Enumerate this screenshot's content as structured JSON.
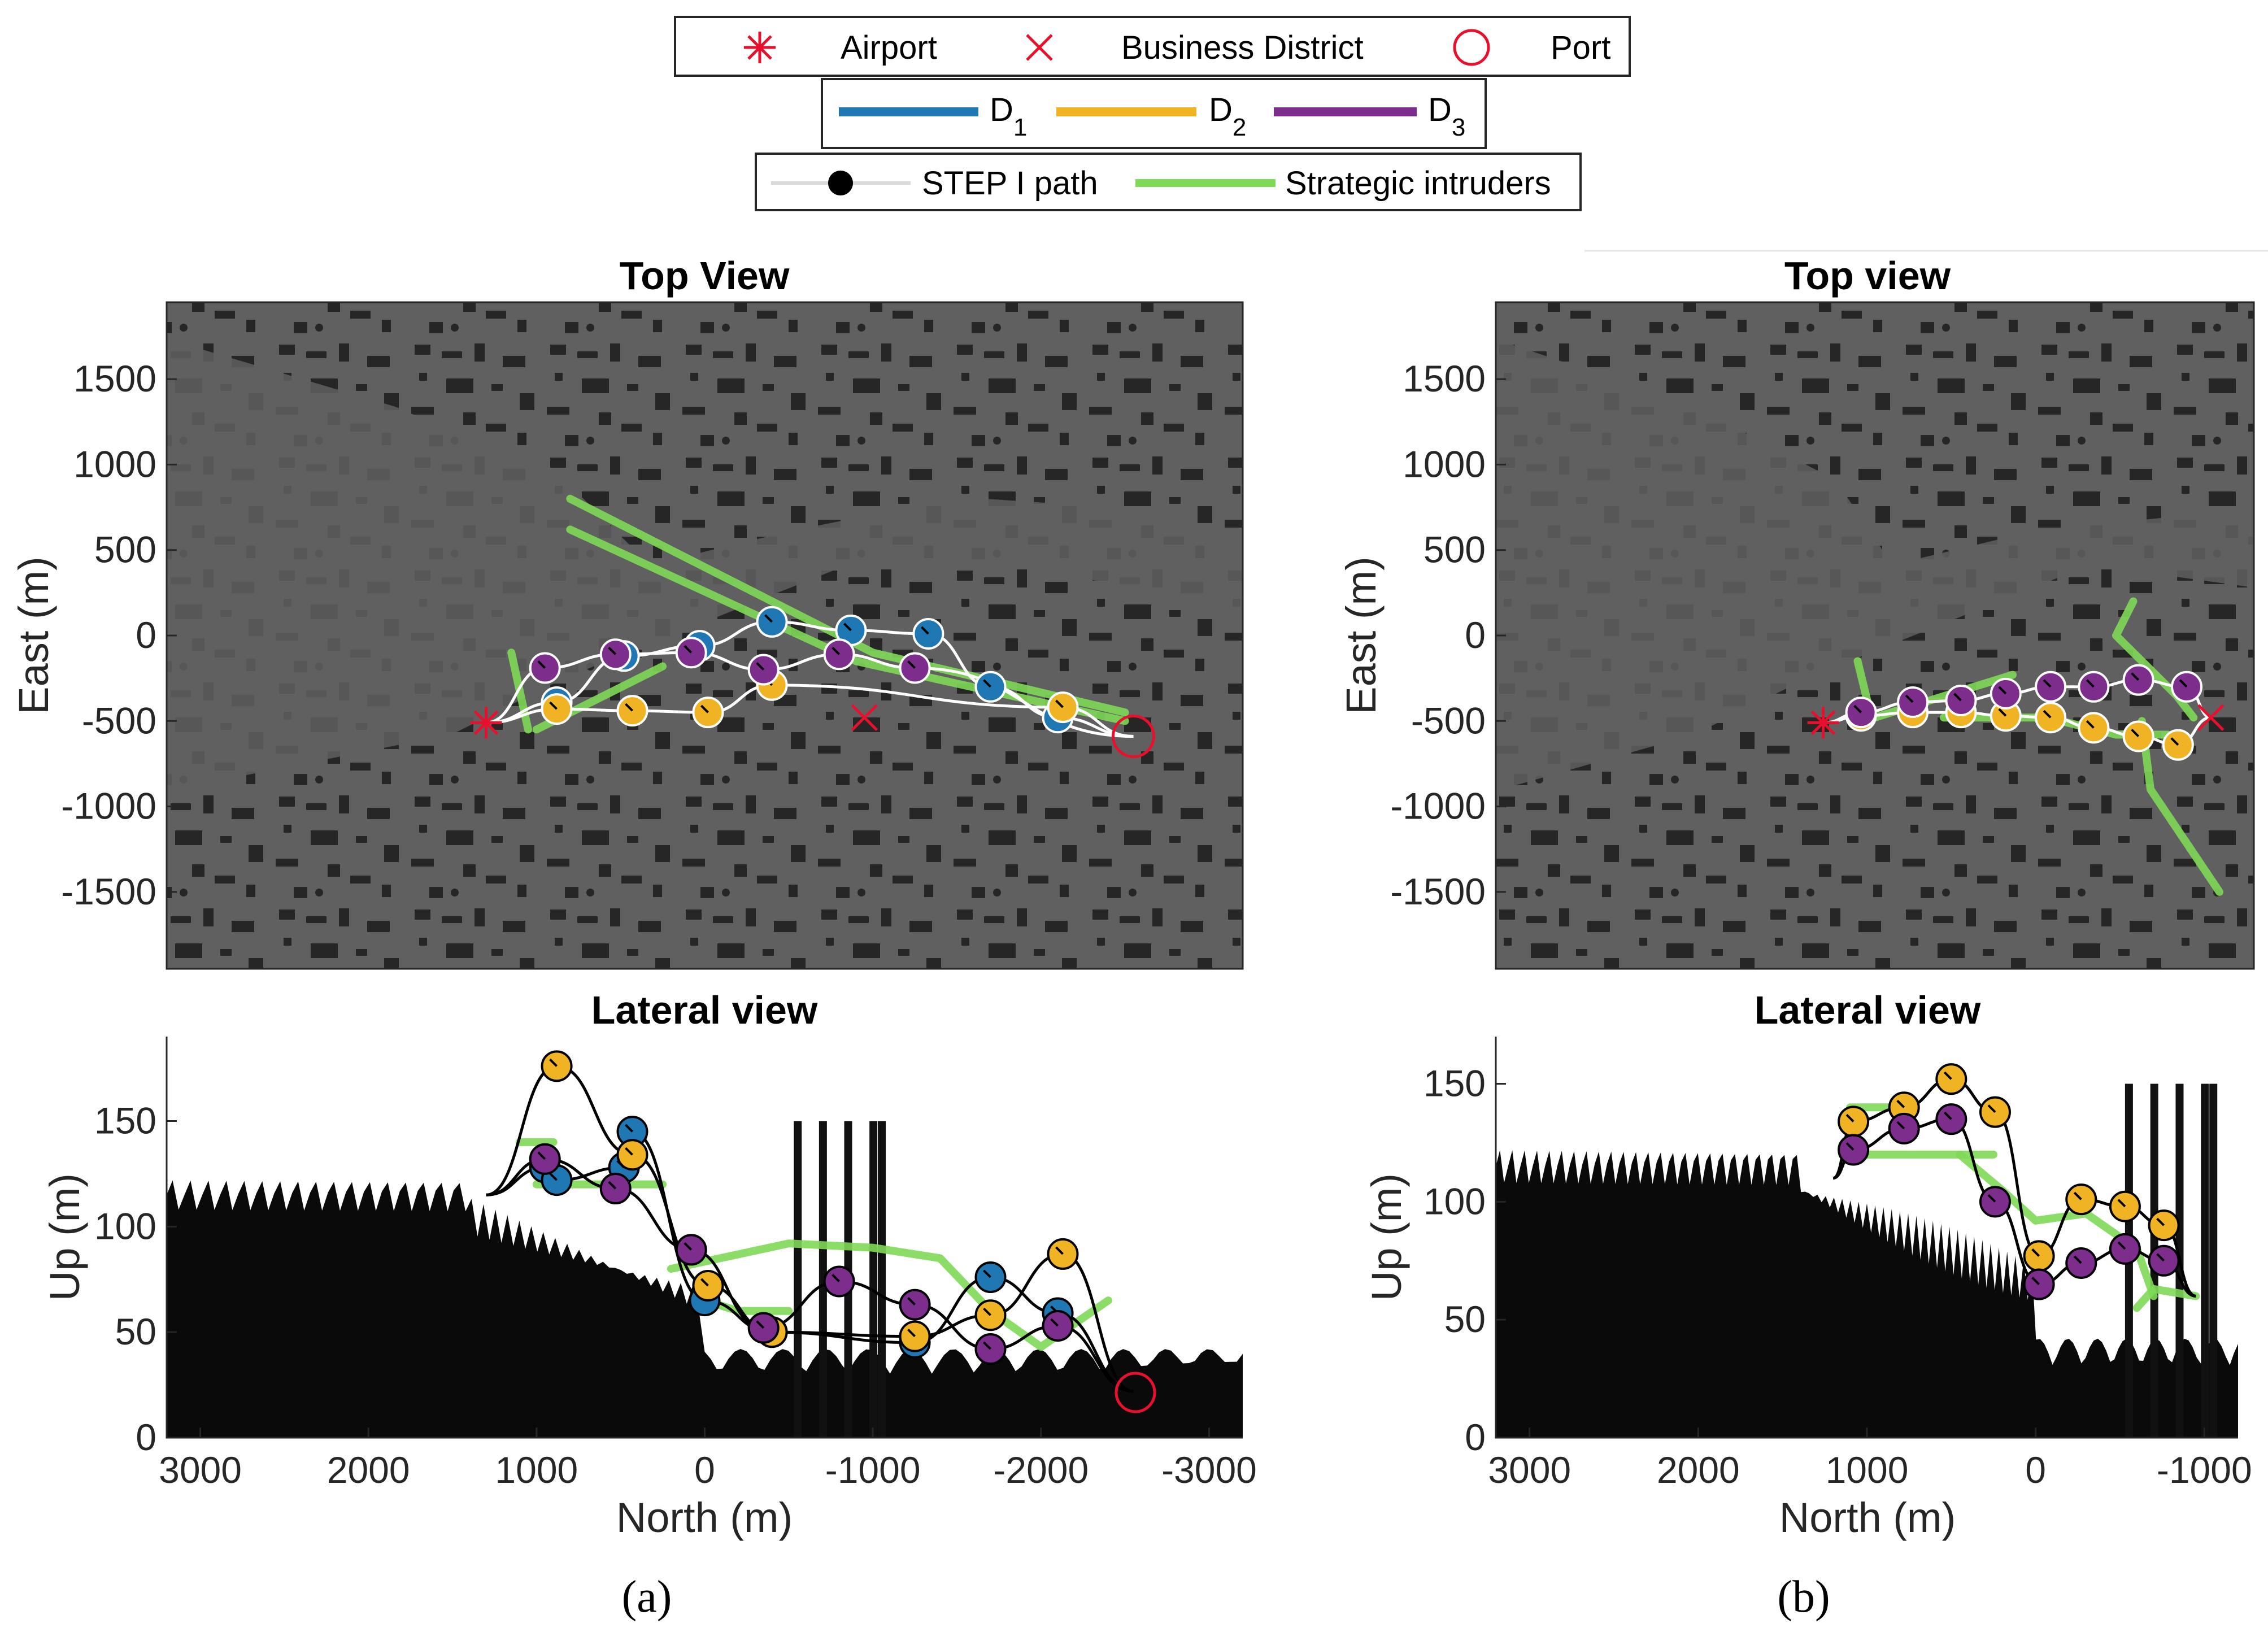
{
  "colors": {
    "map_bg": "#606060",
    "building": "#262626",
    "d1": "#1f77b4",
    "d2": "#f0b323",
    "d3": "#7d2e8d",
    "intruder": "#7ed957",
    "marker_red": "#e8112d",
    "path_white": "#ffffff",
    "path_black": "#000000"
  },
  "legend": {
    "row1": [
      {
        "symbol": "asterisk",
        "label": "Airport"
      },
      {
        "symbol": "cross",
        "label": "Business District"
      },
      {
        "symbol": "circle",
        "label": "Port"
      }
    ],
    "row2": [
      {
        "color_key": "d1",
        "label": "D",
        "sub": "1"
      },
      {
        "color_key": "d2",
        "label": "D",
        "sub": "2"
      },
      {
        "color_key": "d3",
        "label": "D",
        "sub": "3"
      }
    ],
    "row3": [
      {
        "symbol": "step-path",
        "label": "STEP I path"
      },
      {
        "symbol": "intruder-line",
        "label": "Strategic intruders"
      }
    ]
  },
  "chart_data": [
    {
      "id": "a-top",
      "type": "scatter",
      "title": "Top View",
      "xlabel": "",
      "ylabel": "East (m)",
      "xlim": [
        3200,
        -3200
      ],
      "ylim": [
        -1950,
        1950
      ],
      "yticks": [
        1500,
        1000,
        500,
        0,
        -500,
        -1000,
        -1500
      ],
      "landmarks": {
        "airport": [
          1300,
          -510
        ],
        "business_district": [
          -950,
          -480
        ],
        "port": [
          -2550,
          -590
        ]
      },
      "intruders": [
        {
          "points": [
            [
              800,
              800
            ],
            [
              -1000,
              -100
            ],
            [
              -2500,
              -450
            ]
          ]
        },
        {
          "points": [
            [
              800,
              620
            ],
            [
              -900,
              -150
            ],
            [
              -2500,
              -500
            ]
          ]
        },
        {
          "points": [
            [
              1150,
              -100
            ],
            [
              1050,
              -550
            ]
          ]
        },
        {
          "points": [
            [
              1000,
              -550
            ],
            [
              250,
              -180
            ]
          ]
        }
      ],
      "series": [
        {
          "name": "D1",
          "color_key": "d1",
          "points": [
            [
              1300,
              -510
            ],
            [
              880,
              -390
            ],
            [
              480,
              -120
            ],
            [
              30,
              -60
            ],
            [
              -400,
              80
            ],
            [
              -870,
              30
            ],
            [
              -1330,
              10
            ],
            [
              -1700,
              -300
            ],
            [
              -2100,
              -480
            ],
            [
              -2550,
              -590
            ]
          ]
        },
        {
          "name": "D2",
          "color_key": "d2",
          "points": [
            [
              1300,
              -510
            ],
            [
              880,
              -430
            ],
            [
              430,
              -440
            ],
            [
              -20,
              -450
            ],
            [
              -400,
              -290
            ],
            [
              -2130,
              -420
            ],
            [
              -2550,
              -590
            ]
          ]
        },
        {
          "name": "D3",
          "color_key": "d3",
          "points": [
            [
              1300,
              -510
            ],
            [
              950,
              -190
            ],
            [
              530,
              -110
            ],
            [
              80,
              -100
            ],
            [
              -350,
              -200
            ],
            [
              -800,
              -110
            ],
            [
              -1250,
              -190
            ],
            [
              -2550,
              -590
            ]
          ]
        }
      ]
    },
    {
      "id": "a-lateral",
      "type": "line",
      "title": "Lateral view",
      "xlabel": "North (m)",
      "ylabel": "Up (m)",
      "xlim": [
        3200,
        -3200
      ],
      "ylim": [
        0,
        190
      ],
      "xticks": [
        3000,
        2000,
        1000,
        0,
        -1000,
        -2000,
        -3000
      ],
      "xtick_labels": [
        "3000",
        "2000",
        "1000",
        "0",
        "-1000",
        "-2000",
        "-3000"
      ],
      "yticks": [
        0,
        50,
        100,
        150
      ],
      "intruders": [
        {
          "points": [
            [
              1100,
              140
            ],
            [
              900,
              140
            ]
          ]
        },
        {
          "points": [
            [
              1000,
              120
            ],
            [
              250,
              120
            ]
          ]
        },
        {
          "points": [
            [
              200,
              80
            ],
            [
              -500,
              92
            ],
            [
              -1000,
              90
            ],
            [
              -1400,
              85
            ],
            [
              -1700,
              60
            ],
            [
              -2000,
              43
            ],
            [
              -2400,
              65
            ]
          ]
        },
        {
          "points": [
            [
              0,
              65
            ],
            [
              -200,
              60
            ],
            [
              -500,
              60
            ]
          ]
        }
      ],
      "series": [
        {
          "name": "D1",
          "color_key": "d1",
          "points": [
            [
              1300,
              115
            ],
            [
              950,
              128
            ],
            [
              880,
              122
            ],
            [
              480,
              128
            ],
            [
              430,
              145
            ],
            [
              0,
              65
            ],
            [
              -400,
              50
            ],
            [
              -1250,
              45
            ],
            [
              -1700,
              76
            ],
            [
              -2100,
              59
            ],
            [
              -2550,
              22
            ]
          ]
        },
        {
          "name": "D2",
          "color_key": "d2",
          "points": [
            [
              1300,
              115
            ],
            [
              880,
              176
            ],
            [
              430,
              134
            ],
            [
              -20,
              72
            ],
            [
              -400,
              50
            ],
            [
              -1250,
              48
            ],
            [
              -1700,
              58
            ],
            [
              -2130,
              87
            ],
            [
              -2550,
              22
            ]
          ]
        },
        {
          "name": "D3",
          "color_key": "d3",
          "points": [
            [
              1300,
              115
            ],
            [
              950,
              132
            ],
            [
              530,
              118
            ],
            [
              80,
              89
            ],
            [
              -350,
              52
            ],
            [
              -800,
              74
            ],
            [
              -1250,
              63
            ],
            [
              -1700,
              42
            ],
            [
              -2100,
              53
            ],
            [
              -2550,
              22
            ]
          ]
        }
      ]
    },
    {
      "id": "b-top",
      "type": "scatter",
      "title": "Top view",
      "xlabel": "",
      "ylabel": "East (m)",
      "xlim": [
        3200,
        -1200
      ],
      "ylim": [
        -1950,
        1950
      ],
      "yticks": [
        1500,
        1000,
        500,
        0,
        -500,
        -1000,
        -1500
      ],
      "landmarks": {
        "airport": [
          1300,
          -510
        ],
        "business_district": [
          -950,
          -480
        ]
      },
      "intruders": [
        {
          "points": [
            [
              1100,
              -150
            ],
            [
              1020,
              -480
            ]
          ]
        },
        {
          "points": [
            [
              1000,
              -480
            ],
            [
              200,
              -230
            ]
          ]
        },
        {
          "points": [
            [
              600,
              -480
            ],
            [
              0,
              -480
            ],
            [
              -400,
              -580
            ],
            [
              -700,
              -580
            ]
          ]
        },
        {
          "points": [
            [
              -500,
              200
            ],
            [
              -400,
              0
            ],
            [
              -750,
              -350
            ],
            [
              -850,
              -480
            ]
          ]
        },
        {
          "points": [
            [
              -550,
              -500
            ],
            [
              -600,
              -900
            ],
            [
              -800,
              -1200
            ],
            [
              -1000,
              -1500
            ]
          ]
        }
      ],
      "series": [
        {
          "name": "D2",
          "color_key": "d2",
          "points": [
            [
              1300,
              -510
            ],
            [
              1080,
              -470
            ],
            [
              780,
              -450
            ],
            [
              500,
              -450
            ],
            [
              240,
              -470
            ],
            [
              -20,
              -480
            ],
            [
              -270,
              -540
            ],
            [
              -530,
              -590
            ],
            [
              -760,
              -640
            ],
            [
              -950,
              -480
            ]
          ]
        },
        {
          "name": "D3",
          "color_key": "d3",
          "points": [
            [
              1300,
              -510
            ],
            [
              1080,
              -450
            ],
            [
              780,
              -390
            ],
            [
              500,
              -380
            ],
            [
              240,
              -340
            ],
            [
              -20,
              -300
            ],
            [
              -270,
              -300
            ],
            [
              -530,
              -260
            ],
            [
              -810,
              -300
            ],
            [
              -950,
              -480
            ]
          ]
        }
      ]
    },
    {
      "id": "b-lateral",
      "type": "line",
      "title": "Lateral view",
      "xlabel": "North (m)",
      "ylabel": "Up (m)",
      "xlim": [
        3200,
        -1200
      ],
      "ylim": [
        0,
        170
      ],
      "xticks": [
        3000,
        2000,
        1000,
        0,
        -1000
      ],
      "xtick_labels": [
        "3000",
        "2000",
        "1000",
        "0",
        "-1000"
      ],
      "yticks": [
        0,
        50,
        100,
        150
      ],
      "intruders": [
        {
          "points": [
            [
              1100,
              140
            ],
            [
              850,
              140
            ]
          ]
        },
        {
          "points": [
            [
              1000,
              120
            ],
            [
              250,
              120
            ]
          ]
        },
        {
          "points": [
            [
              450,
              120
            ],
            [
              200,
              105
            ],
            [
              0,
              92
            ],
            [
              -300,
              95
            ],
            [
              -600,
              80
            ],
            [
              -700,
              60
            ]
          ]
        },
        {
          "points": [
            [
              -600,
              55
            ],
            [
              -700,
              63
            ],
            [
              -950,
              60
            ]
          ]
        }
      ],
      "series": [
        {
          "name": "D2",
          "color_key": "d2",
          "points": [
            [
              1200,
              110
            ],
            [
              1080,
              134
            ],
            [
              780,
              140
            ],
            [
              500,
              152
            ],
            [
              240,
              138
            ],
            [
              -20,
              77
            ],
            [
              -270,
              101
            ],
            [
              -530,
              98
            ],
            [
              -760,
              90
            ],
            [
              -950,
              60
            ]
          ]
        },
        {
          "name": "D3",
          "color_key": "d3",
          "points": [
            [
              1200,
              110
            ],
            [
              1080,
              122
            ],
            [
              780,
              131
            ],
            [
              500,
              135
            ],
            [
              240,
              100
            ],
            [
              -20,
              65
            ],
            [
              -270,
              74
            ],
            [
              -530,
              80
            ],
            [
              -760,
              75
            ],
            [
              -950,
              60
            ]
          ]
        }
      ]
    }
  ],
  "captions": [
    "(a)",
    "(b)"
  ]
}
